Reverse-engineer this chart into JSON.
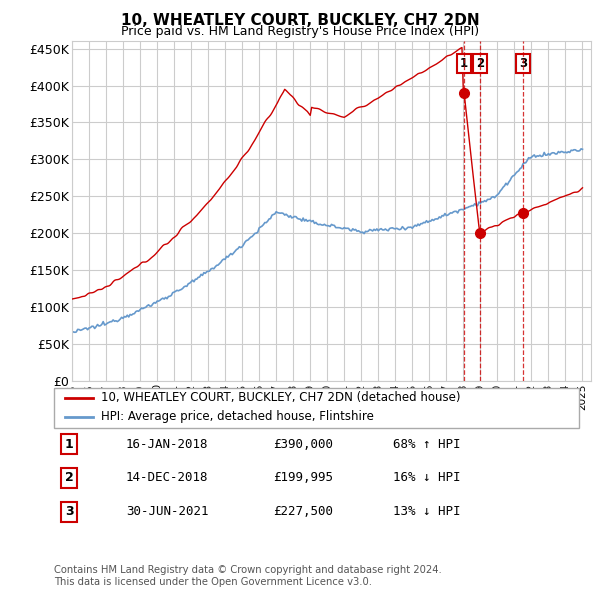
{
  "title": "10, WHEATLEY COURT, BUCKLEY, CH7 2DN",
  "subtitle": "Price paid vs. HM Land Registry's House Price Index (HPI)",
  "ylim": [
    0,
    460000
  ],
  "yticks": [
    0,
    50000,
    100000,
    150000,
    200000,
    250000,
    300000,
    350000,
    400000,
    450000
  ],
  "ytick_labels": [
    "£0",
    "£50K",
    "£100K",
    "£150K",
    "£200K",
    "£250K",
    "£300K",
    "£350K",
    "£400K",
    "£450K"
  ],
  "legend_line1": "10, WHEATLEY COURT, BUCKLEY, CH7 2DN (detached house)",
  "legend_line2": "HPI: Average price, detached house, Flintshire",
  "transactions": [
    {
      "num": 1,
      "date": "16-JAN-2018",
      "price": "£390,000",
      "change": "68% ↑ HPI",
      "year": 2018.04,
      "value": 390000
    },
    {
      "num": 2,
      "date": "14-DEC-2018",
      "price": "£199,995",
      "change": "16% ↓ HPI",
      "year": 2018.96,
      "value": 199995
    },
    {
      "num": 3,
      "date": "30-JUN-2021",
      "price": "£227,500",
      "change": "13% ↓ HPI",
      "year": 2021.5,
      "value": 227500
    }
  ],
  "footer": "Contains HM Land Registry data © Crown copyright and database right 2024.\nThis data is licensed under the Open Government Licence v3.0.",
  "red_color": "#cc0000",
  "blue_color": "#6699cc",
  "grid_color": "#cccccc",
  "bg_color": "#ffffff"
}
